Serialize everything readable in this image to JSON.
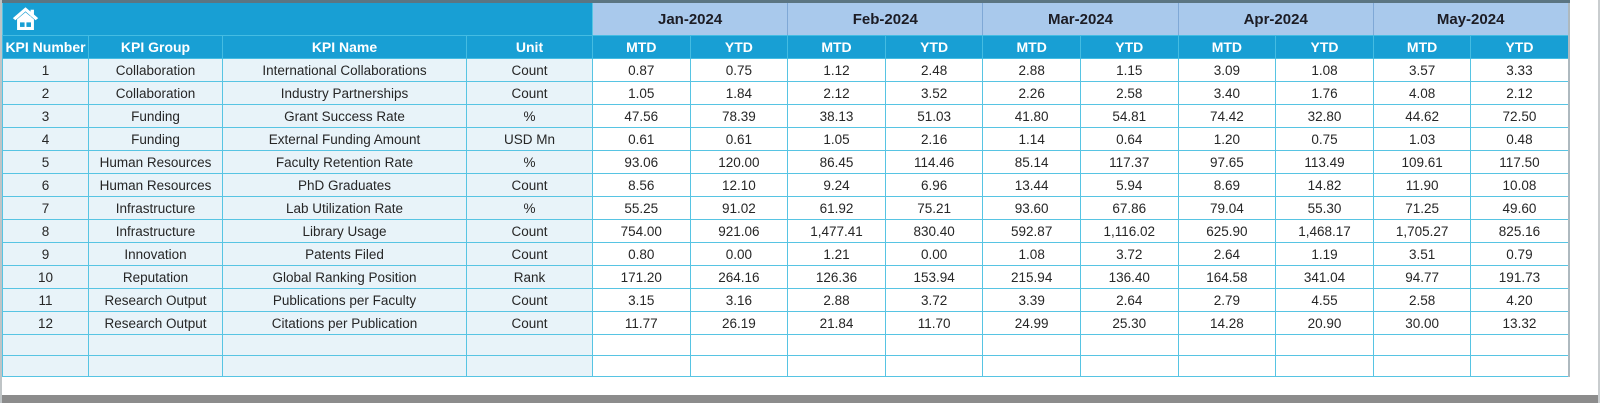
{
  "toolbar": {
    "home_icon": "home"
  },
  "colors": {
    "header_cyan": "#189fd4",
    "month_band_bg": "#a9c9ec",
    "left_cell_bg": "#e8f3f9",
    "grid_line": "#57c4e3",
    "bottom_bar": "#8c8c8c"
  },
  "table": {
    "left_headers": [
      "KPI Number",
      "KPI Group",
      "KPI Name",
      "Unit"
    ],
    "months": [
      "Jan-2024",
      "Feb-2024",
      "Mar-2024",
      "Apr-2024",
      "May-2024"
    ],
    "period_headers": [
      "MTD",
      "YTD"
    ],
    "empty_rows": 2,
    "rows": [
      {
        "num": "1",
        "group": "Collaboration",
        "name": "International Collaborations",
        "unit": "Count",
        "values": [
          "0.87",
          "0.75",
          "1.12",
          "2.48",
          "2.88",
          "1.15",
          "3.09",
          "1.08",
          "3.57",
          "3.33"
        ]
      },
      {
        "num": "2",
        "group": "Collaboration",
        "name": "Industry Partnerships",
        "unit": "Count",
        "values": [
          "1.05",
          "1.84",
          "2.12",
          "3.52",
          "2.26",
          "2.58",
          "3.40",
          "1.76",
          "4.08",
          "2.12"
        ]
      },
      {
        "num": "3",
        "group": "Funding",
        "name": "Grant Success Rate",
        "unit": "%",
        "values": [
          "47.56",
          "78.39",
          "38.13",
          "51.03",
          "41.80",
          "54.81",
          "74.42",
          "32.80",
          "44.62",
          "72.50"
        ]
      },
      {
        "num": "4",
        "group": "Funding",
        "name": "External Funding Amount",
        "unit": "USD Mn",
        "values": [
          "0.61",
          "0.61",
          "1.05",
          "2.16",
          "1.14",
          "0.64",
          "1.20",
          "0.75",
          "1.03",
          "0.48"
        ]
      },
      {
        "num": "5",
        "group": "Human Resources",
        "name": "Faculty Retention Rate",
        "unit": "%",
        "values": [
          "93.06",
          "120.00",
          "86.45",
          "114.46",
          "85.14",
          "117.37",
          "97.65",
          "113.49",
          "109.61",
          "117.50"
        ]
      },
      {
        "num": "6",
        "group": "Human Resources",
        "name": "PhD Graduates",
        "unit": "Count",
        "values": [
          "8.56",
          "12.10",
          "9.24",
          "6.96",
          "13.44",
          "5.94",
          "8.69",
          "14.82",
          "11.90",
          "10.08"
        ]
      },
      {
        "num": "7",
        "group": "Infrastructure",
        "name": "Lab Utilization Rate",
        "unit": "%",
        "values": [
          "55.25",
          "91.02",
          "61.92",
          "75.21",
          "93.60",
          "67.86",
          "79.04",
          "55.30",
          "71.25",
          "49.60"
        ]
      },
      {
        "num": "8",
        "group": "Infrastructure",
        "name": "Library Usage",
        "unit": "Count",
        "values": [
          "754.00",
          "921.06",
          "1,477.41",
          "830.40",
          "592.87",
          "1,116.02",
          "625.90",
          "1,468.17",
          "1,705.27",
          "825.16"
        ]
      },
      {
        "num": "9",
        "group": "Innovation",
        "name": "Patents Filed",
        "unit": "Count",
        "values": [
          "0.80",
          "0.00",
          "1.21",
          "0.00",
          "1.08",
          "3.72",
          "2.64",
          "1.19",
          "3.51",
          "0.79"
        ]
      },
      {
        "num": "10",
        "group": "Reputation",
        "name": "Global Ranking Position",
        "unit": "Rank",
        "values": [
          "171.20",
          "264.16",
          "126.36",
          "153.94",
          "215.94",
          "136.40",
          "164.58",
          "341.04",
          "94.77",
          "191.73"
        ]
      },
      {
        "num": "11",
        "group": "Research Output",
        "name": "Publications per Faculty",
        "unit": "Count",
        "values": [
          "3.15",
          "3.16",
          "2.88",
          "3.72",
          "3.39",
          "2.64",
          "2.79",
          "4.55",
          "2.58",
          "4.20"
        ]
      },
      {
        "num": "12",
        "group": "Research Output",
        "name": "Citations per Publication",
        "unit": "Count",
        "values": [
          "11.77",
          "26.19",
          "21.84",
          "11.70",
          "24.99",
          "25.30",
          "14.28",
          "20.90",
          "30.00",
          "13.32"
        ]
      }
    ]
  }
}
